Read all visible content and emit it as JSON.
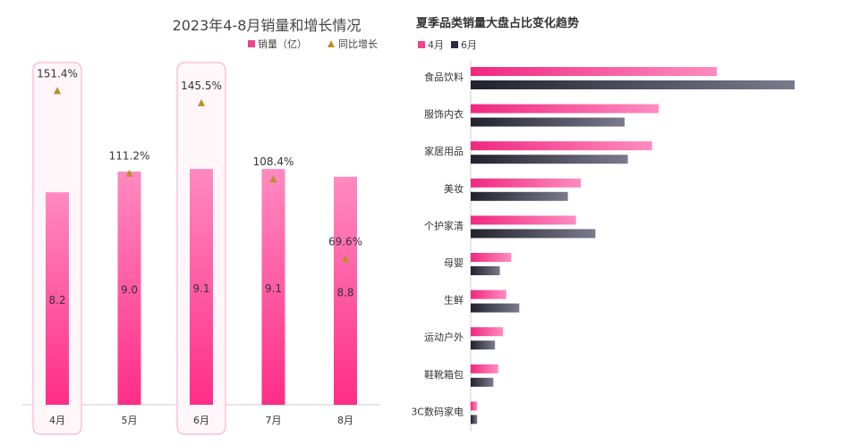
{
  "chart_data": [
    {
      "type": "bar",
      "title": "2023年4-8月销量和增长情况",
      "categories": [
        "4月",
        "5月",
        "6月",
        "7月",
        "8月"
      ],
      "series": [
        {
          "name": "销量（亿）",
          "values": [
            8.2,
            9.0,
            9.1,
            9.1,
            8.8
          ],
          "labels": [
            "8.2",
            "9.0",
            "9.1",
            "9.1",
            "8.8"
          ],
          "color": "#f0428e"
        },
        {
          "name": "同比增长",
          "values": [
            151.4,
            111.2,
            145.5,
            108.4,
            69.6
          ],
          "labels": [
            "151.4%",
            "111.2%",
            "145.5%",
            "108.4%",
            "69.6%"
          ],
          "color": "#b8902a",
          "marker": "triangle"
        }
      ],
      "highlighted": [
        "4月",
        "6月"
      ],
      "ylim": [
        0,
        11
      ],
      "grid": false,
      "legend": "top-right"
    },
    {
      "type": "bar",
      "orientation": "horizontal",
      "title": "夏季品类销量大盘占比变化趋势",
      "categories": [
        "食品饮料",
        "服饰内衣",
        "家居用品",
        "美妆",
        "个护家清",
        "母婴",
        "生鲜",
        "运动户外",
        "鞋靴箱包",
        "3C数码家电"
      ],
      "series": [
        {
          "name": "4月",
          "values": [
            15.2,
            11.6,
            11.2,
            6.8,
            6.5,
            2.5,
            2.2,
            2.0,
            1.7,
            0.4
          ],
          "color": "#f0428e"
        },
        {
          "name": "6月",
          "values": [
            20.0,
            9.5,
            9.7,
            6.0,
            7.7,
            1.8,
            3.0,
            1.5,
            1.4,
            0.4
          ],
          "color": "#3a3a4c"
        }
      ],
      "xlim": [
        0,
        21
      ],
      "grid": false,
      "legend": "top-left"
    }
  ]
}
